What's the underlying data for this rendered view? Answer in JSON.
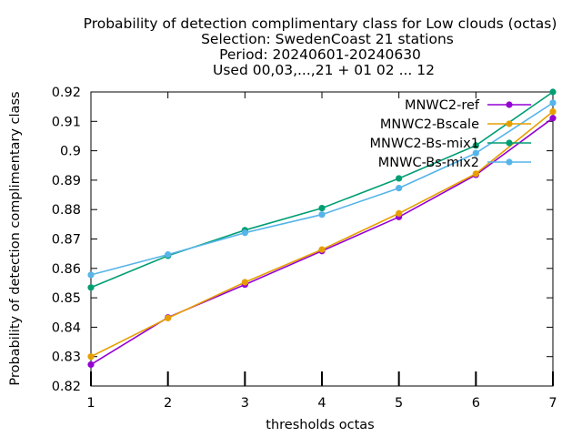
{
  "chart_data": {
    "type": "line",
    "title_lines": [
      "Probability of detection complimentary class  for Low clouds (octas)",
      "Selection: SwedenCoast     21 stations",
      "Period: 20240601-20240630",
      "Used 00,03,...,21 + 01 02 ... 12"
    ],
    "xlabel": "thresholds octas",
    "ylabel": "Probability of detection complimentary class",
    "x": [
      1,
      2,
      3,
      4,
      5,
      6,
      7
    ],
    "x_tick_labels": [
      "1",
      "2",
      "3",
      "4",
      "5",
      "6",
      "7"
    ],
    "xlim": [
      1,
      7
    ],
    "ylim": [
      0.82,
      0.92
    ],
    "y_ticks": [
      0.82,
      0.83,
      0.84,
      0.85,
      0.86,
      0.87,
      0.88,
      0.89,
      0.9,
      0.91,
      0.92
    ],
    "y_tick_labels": [
      "0.82",
      "0.83",
      "0.84",
      "0.85",
      "0.86",
      "0.87",
      "0.88",
      "0.89",
      "0.9",
      "0.91",
      "0.92"
    ],
    "grid": false,
    "legend_position": "top-right",
    "series": [
      {
        "name": "MNWC2-ref",
        "color": "#9400d3",
        "marker": "circle",
        "values": [
          0.8273,
          0.8433,
          0.8545,
          0.8659,
          0.8775,
          0.8918,
          0.9111
        ]
      },
      {
        "name": "MNWC2-Bscale",
        "color": "#e69f00",
        "marker": "circle",
        "values": [
          0.83,
          0.8431,
          0.8553,
          0.8664,
          0.8787,
          0.8922,
          0.9133
        ]
      },
      {
        "name": "MNWC2-Bs-mix1",
        "color": "#009e73",
        "marker": "circle",
        "values": [
          0.8535,
          0.8643,
          0.873,
          0.8805,
          0.8906,
          0.9018,
          0.92
        ]
      },
      {
        "name": "MNWC-Bs-mix2",
        "color": "#56b4e9",
        "marker": "circle",
        "values": [
          0.8578,
          0.8647,
          0.8721,
          0.8783,
          0.8873,
          0.8992,
          0.9163
        ]
      }
    ]
  }
}
